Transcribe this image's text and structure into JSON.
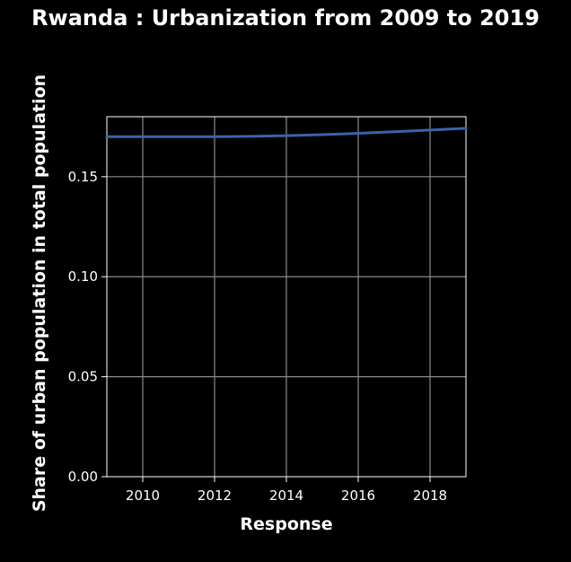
{
  "chart_data": {
    "type": "line",
    "title": "Rwanda : Urbanization from 2009 to 2019",
    "xlabel": "Response",
    "ylabel": "Share of urban population in total population",
    "xlim": [
      2009,
      2019
    ],
    "ylim": [
      0,
      0.18
    ],
    "x_ticks": [
      "2010",
      "2012",
      "2014",
      "2016",
      "2018"
    ],
    "y_ticks": [
      "0.00",
      "0.05",
      "0.10",
      "0.15"
    ],
    "grid": true,
    "series": [
      {
        "x": [
          2009,
          2010,
          2011,
          2012,
          2013,
          2014,
          2015,
          2016,
          2017,
          2018,
          2019
        ],
        "values": [
          0.17,
          0.17,
          0.17,
          0.17,
          0.1702,
          0.1705,
          0.171,
          0.1717,
          0.1725,
          0.1733,
          0.1742
        ]
      }
    ],
    "colors": {
      "line": "#3a64a8",
      "grid": "#8a8a8a",
      "frame": "#ffffff",
      "background": "#000000",
      "text": "#ffffff"
    }
  }
}
